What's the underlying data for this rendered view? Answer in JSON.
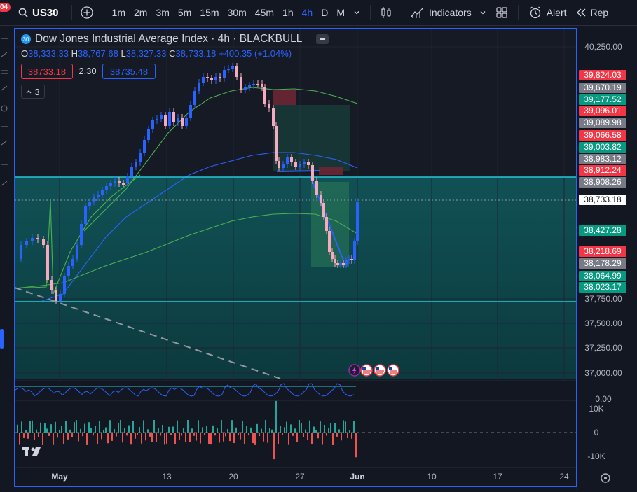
{
  "toolbar": {
    "badge": "04",
    "symbol": "US30",
    "timeframes": [
      "1m",
      "2m",
      "3m",
      "5m",
      "15m",
      "30m",
      "45m",
      "1h",
      "4h",
      "D",
      "M"
    ],
    "active_timeframe": "4h",
    "indicators_label": "Indicators",
    "alert_label": "Alert",
    "replay_label": "Rep"
  },
  "legend": {
    "logo": "30",
    "title": "Dow Jones Industrial Average Index · 4h · BLACKBULL",
    "o_label": "O",
    "o_value": "38,333.33",
    "h_label": "H",
    "h_value": "38,767.68",
    "l_label": "L",
    "l_value": "38,327.33",
    "c_label": "C",
    "c_value": "38,733.18",
    "change": "+400.35 (+1.04%)",
    "sell_price": "38733.18",
    "spread": "2.30",
    "buy_price": "38735.48",
    "indicators_count": "3"
  },
  "price_axis": {
    "ticks": [
      "40,250.00",
      "37,750.00",
      "37,500.00",
      "37,250.00",
      "37,000.00",
      "0.00"
    ],
    "labels": [
      {
        "text": "39,824.03",
        "color": "#f23645"
      },
      {
        "text": "39,670.19",
        "color": "#787b86"
      },
      {
        "text": "39,177.52",
        "color": "#089981"
      },
      {
        "text": "39,096.01",
        "color": "#f23645"
      },
      {
        "text": "39,089.98",
        "color": "#787b86"
      },
      {
        "text": "39,066.58",
        "color": "#f23645"
      },
      {
        "text": "39,003.82",
        "color": "#089981"
      },
      {
        "text": "38,983.12",
        "color": "#787b86"
      },
      {
        "text": "38,912.24",
        "color": "#f23645"
      },
      {
        "text": "38,908.26",
        "color": "#787b86"
      },
      {
        "text": "38,733.18",
        "color": "#ffffff"
      },
      {
        "text": "38,427.28",
        "color": "#089981"
      },
      {
        "text": "38,218.69",
        "color": "#f23645"
      },
      {
        "text": "38,178.29",
        "color": "#787b86"
      },
      {
        "text": "38,064.99",
        "color": "#089981"
      },
      {
        "text": "38,023.17",
        "color": "#089981"
      }
    ],
    "volume_ticks": [
      "10K",
      "0",
      "-10K"
    ]
  },
  "time_axis": {
    "labels": [
      "May",
      "13",
      "20",
      "27",
      "Jun",
      "10",
      "17",
      "24"
    ]
  },
  "colors": {
    "up": "#2962ff",
    "down": "#f7a9c0",
    "zone": "#0d4f52",
    "line_cyan": "#26c6da",
    "ma_green": "#4caf50",
    "ma_blue": "#2962ff",
    "accent": "#2962ff"
  }
}
